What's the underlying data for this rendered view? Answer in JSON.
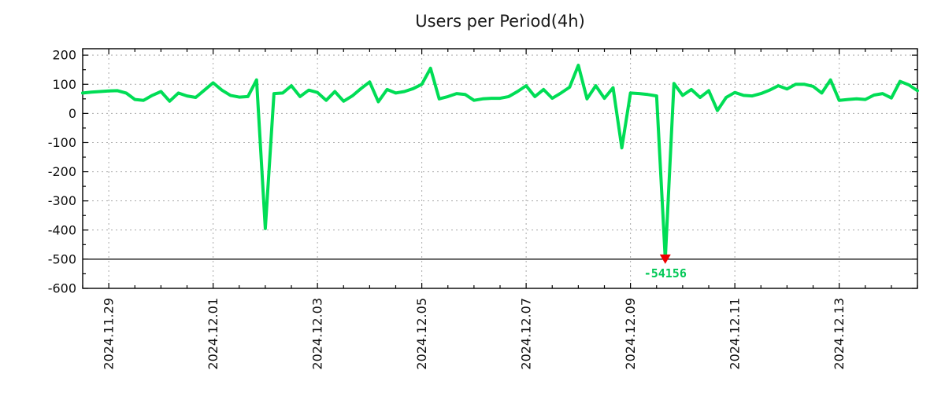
{
  "chart_data": {
    "type": "line",
    "title": "Users per Period(4h)",
    "xlabel": "",
    "ylabel": "",
    "x_start": "2024-11-28 12:00",
    "x_interval_hours": 4,
    "series": [
      {
        "name": "Users",
        "color": "#00dd55",
        "values": [
          70,
          73,
          75,
          77,
          78,
          70,
          48,
          45,
          62,
          75,
          42,
          70,
          60,
          55,
          80,
          105,
          80,
          62,
          56,
          58,
          115,
          -395,
          68,
          70,
          95,
          58,
          80,
          72,
          45,
          75,
          42,
          60,
          85,
          108,
          40,
          82,
          70,
          75,
          85,
          100,
          155,
          50,
          58,
          68,
          65,
          45,
          50,
          52,
          52,
          58,
          75,
          95,
          58,
          82,
          52,
          70,
          90,
          165,
          50,
          95,
          52,
          88,
          -118,
          70,
          68,
          65,
          60,
          -54156,
          103,
          62,
          82,
          55,
          78,
          10,
          55,
          72,
          62,
          60,
          68,
          80,
          95,
          84,
          100,
          100,
          93,
          70,
          115,
          45,
          48,
          50,
          48,
          63,
          68,
          53,
          110,
          98,
          78
        ]
      }
    ],
    "x_tick_labels": [
      {
        "label": "2024.11.29",
        "index": 3
      },
      {
        "label": "2024.12.01",
        "index": 15
      },
      {
        "label": "2024.12.03",
        "index": 27
      },
      {
        "label": "2024.12.05",
        "index": 39
      },
      {
        "label": "2024.12.07",
        "index": 51
      },
      {
        "label": "2024.12.09",
        "index": 63
      },
      {
        "label": "2024.12.11",
        "index": 75
      },
      {
        "label": "2024.12.13",
        "index": 87
      }
    ],
    "y_ticks": [
      200,
      100,
      0,
      -100,
      -200,
      -300,
      -400,
      -500,
      -600
    ],
    "ylim": [
      -600,
      222
    ],
    "clip_line_value": -500,
    "x_minor_tick_every_points": 3,
    "y_minor_tick_step": 50,
    "grid": true,
    "legend_position": "none",
    "annotation": {
      "text": "-54156",
      "value": -54156,
      "point_index": 67,
      "text_color": "#00c855",
      "marker": "triangle-down",
      "marker_color": "#ee0000"
    }
  },
  "colors": {
    "grid": "#a9a9a9",
    "axis": "#000000",
    "title_text": "#1a1a1a",
    "tick_text": "#111111",
    "background": "#ffffff"
  }
}
